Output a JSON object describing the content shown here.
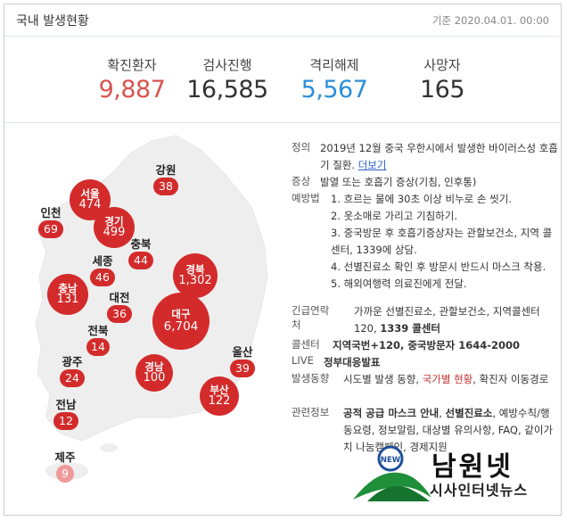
{
  "header": {
    "title": "국내 발생현황",
    "date": "기준 2020.04.01. 00:00"
  },
  "stats": [
    {
      "label": "확진환자",
      "value": "9,887",
      "color": "#d9534f"
    },
    {
      "label": "검사진행",
      "value": "16,585",
      "color": "#333333"
    },
    {
      "label": "격리해제",
      "value": "5,567",
      "color": "#2e8fd8"
    },
    {
      "label": "사망자",
      "value": "165",
      "color": "#333333"
    }
  ],
  "regions": {
    "seoul": {
      "name": "서울",
      "count": "474"
    },
    "gangwon": {
      "name": "강원",
      "count": "38"
    },
    "incheon": {
      "name": "인천",
      "count": "69"
    },
    "gyeonggi": {
      "name": "경기",
      "count": "499"
    },
    "chungbuk": {
      "name": "충북",
      "count": "44"
    },
    "sejong": {
      "name": "세종",
      "count": "46"
    },
    "gyeongbuk": {
      "name": "경북",
      "count": "1,302"
    },
    "chungnam": {
      "name": "충남",
      "count": "131"
    },
    "daejeon": {
      "name": "대전",
      "count": "36"
    },
    "daegu": {
      "name": "대구",
      "count": "6,704"
    },
    "jeonbuk": {
      "name": "전북",
      "count": "14"
    },
    "ulsan": {
      "name": "울산",
      "count": "39"
    },
    "gwangju": {
      "name": "광주",
      "count": "24"
    },
    "gyeongnam": {
      "name": "경남",
      "count": "100"
    },
    "busan": {
      "name": "부산",
      "count": "122"
    },
    "jeonnam": {
      "name": "전남",
      "count": "12"
    },
    "jeju": {
      "name": "제주",
      "count": "9"
    }
  },
  "info": {
    "definition": {
      "label": "정의",
      "text": "2019년 12월 중국 우한시에서 발생한 바이러스성 호흡기 질환.",
      "more": "더보기"
    },
    "symptom": {
      "label": "증상",
      "text": "발열 또는 호흡기 증상(기침, 인후통)"
    },
    "prevention": {
      "label": "예방법",
      "items": [
        "1. 흐르는 물에 30초 이상 비누로 손 씻기.",
        "2. 옷소매로 가리고 기침하기.",
        "3. 중국방문 후 호흡기증상자는 관할보건소, 지역 콜센터, 1339에 상담.",
        "4. 선별진료소 확인 후 방문시 반드시 마스크 착용.",
        "5. 해외여행력 의료진에게 전달."
      ]
    },
    "emergency": {
      "label": "긴급연락처",
      "text": "가까운 선별진료소, 관할보건소, 지역콜센터 120,",
      "strong": "1339 콜센터"
    },
    "callcenter": {
      "label": "콜센터",
      "text": "지역국번+120, 중국방문자 1644-2000"
    },
    "live": {
      "label": "LIVE",
      "text": "정부대응발표"
    },
    "trend": {
      "label": "발생동향",
      "a": "시도별 발생 동향",
      "sep1": ", ",
      "b": "국가별 현황",
      "sep2": ", ",
      "c": "확진자 이동경로"
    },
    "related": {
      "label": "관련정보",
      "a": "공적 공급 마스크 안내",
      "sep1": ", ",
      "b": "선별진료소",
      "rest": ", 예방수칙/행동요령, 정보알림, 대상별 유의사항, FAQ, 같이가치 나눔캠페인, 경제지원"
    }
  },
  "logo": {
    "badge": "NEW",
    "title": "남원넷",
    "subtitle": "시사인터넷뉴스"
  }
}
